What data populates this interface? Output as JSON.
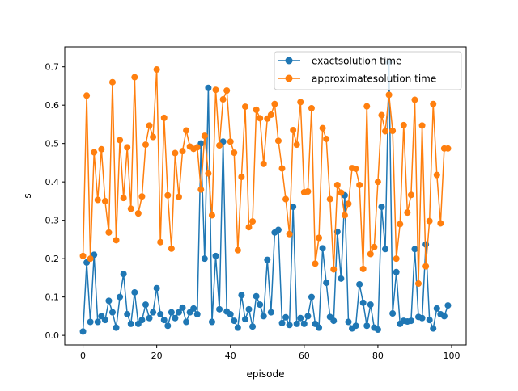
{
  "chart_data": {
    "type": "line",
    "title": "",
    "xlabel": "episode",
    "ylabel": "s",
    "xlim": [
      -4.95,
      103.95
    ],
    "ylim": [
      -0.025,
      0.752
    ],
    "xticks": [
      0,
      20,
      40,
      60,
      80,
      100
    ],
    "xtick_labels": [
      "0",
      "20",
      "40",
      "60",
      "80",
      "100"
    ],
    "yticks": [
      0.0,
      0.1,
      0.2,
      0.3,
      0.4,
      0.5,
      0.6,
      0.7
    ],
    "ytick_labels": [
      "0.0",
      "0.1",
      "0.2",
      "0.3",
      "0.4",
      "0.5",
      "0.6",
      "0.7"
    ],
    "grid": false,
    "legend_position": "top-right",
    "x": [
      0,
      1,
      2,
      3,
      4,
      5,
      6,
      7,
      8,
      9,
      10,
      11,
      12,
      13,
      14,
      15,
      16,
      17,
      18,
      19,
      20,
      21,
      22,
      23,
      24,
      25,
      26,
      27,
      28,
      29,
      30,
      31,
      32,
      33,
      34,
      35,
      36,
      37,
      38,
      39,
      40,
      41,
      42,
      43,
      44,
      45,
      46,
      47,
      48,
      49,
      50,
      51,
      52,
      53,
      54,
      55,
      56,
      57,
      58,
      59,
      60,
      61,
      62,
      63,
      64,
      65,
      66,
      67,
      68,
      69,
      70,
      71,
      72,
      73,
      74,
      75,
      76,
      77,
      78,
      79,
      80,
      81,
      82,
      83,
      84,
      85,
      86,
      87,
      88,
      89,
      90,
      91,
      92,
      93,
      94,
      95,
      96,
      97,
      98,
      99
    ],
    "series": [
      {
        "name": "exactsolution time",
        "color": "#1f77b4",
        "values": [
          0.01,
          0.19,
          0.035,
          0.21,
          0.035,
          0.05,
          0.04,
          0.09,
          0.06,
          0.02,
          0.1,
          0.16,
          0.055,
          0.03,
          0.112,
          0.03,
          0.04,
          0.08,
          0.045,
          0.06,
          0.123,
          0.055,
          0.04,
          0.025,
          0.06,
          0.045,
          0.06,
          0.072,
          0.035,
          0.06,
          0.07,
          0.055,
          0.5,
          0.2,
          0.645,
          0.035,
          0.207,
          0.068,
          0.505,
          0.062,
          0.055,
          0.038,
          0.02,
          0.105,
          0.042,
          0.068,
          0.023,
          0.102,
          0.08,
          0.05,
          0.197,
          0.06,
          0.268,
          0.275,
          0.032,
          0.047,
          0.027,
          0.335,
          0.03,
          0.045,
          0.03,
          0.05,
          0.1,
          0.03,
          0.02,
          0.227,
          0.137,
          0.048,
          0.038,
          0.27,
          0.148,
          0.365,
          0.035,
          0.018,
          0.025,
          0.133,
          0.085,
          0.025,
          0.08,
          0.02,
          0.015,
          0.335,
          0.225,
          0.712,
          0.057,
          0.165,
          0.03,
          0.038,
          0.036,
          0.038,
          0.225,
          0.048,
          0.045,
          0.237,
          0.04,
          0.018,
          0.07,
          0.055,
          0.05,
          0.078
        ]
      },
      {
        "name": "approximatesolution time",
        "color": "#ff7f0e",
        "values": [
          0.207,
          0.625,
          0.2,
          0.477,
          0.353,
          0.485,
          0.35,
          0.268,
          0.66,
          0.248,
          0.509,
          0.358,
          0.49,
          0.33,
          0.673,
          0.318,
          0.362,
          0.497,
          0.547,
          0.517,
          0.693,
          0.243,
          0.567,
          0.365,
          0.226,
          0.475,
          0.361,
          0.48,
          0.534,
          0.492,
          0.486,
          0.49,
          0.38,
          0.52,
          0.422,
          0.313,
          0.64,
          0.495,
          0.615,
          0.638,
          0.505,
          0.476,
          0.222,
          0.413,
          0.596,
          0.282,
          0.297,
          0.588,
          0.566,
          0.447,
          0.565,
          0.575,
          0.603,
          0.507,
          0.435,
          0.355,
          0.264,
          0.535,
          0.497,
          0.608,
          0.373,
          0.375,
          0.592,
          0.187,
          0.254,
          0.54,
          0.512,
          0.355,
          0.172,
          0.392,
          0.372,
          0.313,
          0.343,
          0.436,
          0.434,
          0.392,
          0.173,
          0.597,
          0.212,
          0.23,
          0.4,
          0.574,
          0.532,
          0.627,
          0.533,
          0.2,
          0.29,
          0.548,
          0.32,
          0.366,
          0.614,
          0.135,
          0.547,
          0.18,
          0.298,
          0.603,
          0.418,
          0.292,
          0.487,
          0.487
        ]
      }
    ]
  }
}
